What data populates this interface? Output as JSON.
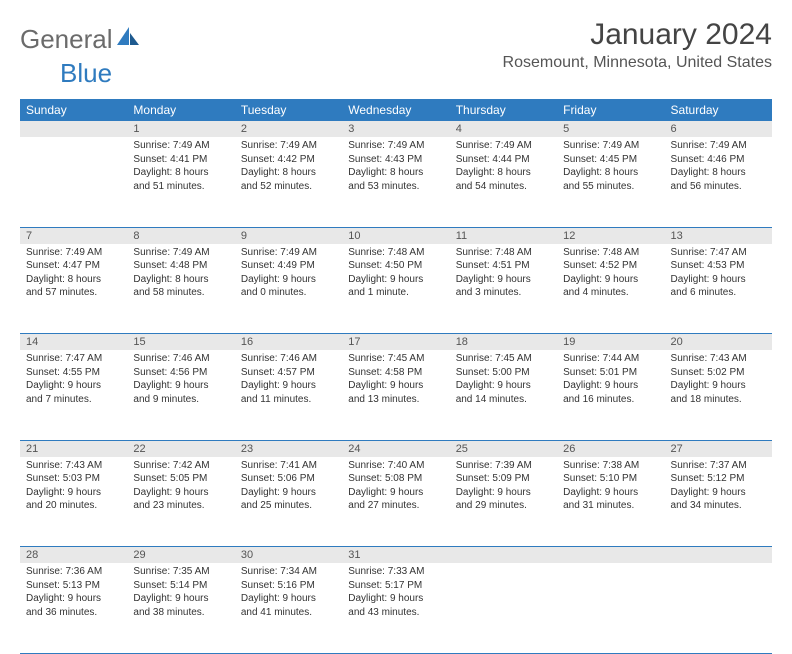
{
  "logo": {
    "text1": "General",
    "text2": "Blue"
  },
  "title": "January 2024",
  "location": "Rosemount, Minnesota, United States",
  "day_headers": [
    "Sunday",
    "Monday",
    "Tuesday",
    "Wednesday",
    "Thursday",
    "Friday",
    "Saturday"
  ],
  "colors": {
    "header_bg": "#2f7bbf",
    "header_text": "#ffffff",
    "daynum_bg": "#e8e8e8",
    "rule": "#2f7bbf",
    "page_bg": "#ffffff",
    "logo_gray": "#6b6b6b",
    "logo_blue": "#2f7bbf"
  },
  "weeks": [
    [
      {
        "n": "",
        "sunrise": "",
        "sunset": "",
        "daylight1": "",
        "daylight2": ""
      },
      {
        "n": "1",
        "sunrise": "Sunrise: 7:49 AM",
        "sunset": "Sunset: 4:41 PM",
        "daylight1": "Daylight: 8 hours",
        "daylight2": "and 51 minutes."
      },
      {
        "n": "2",
        "sunrise": "Sunrise: 7:49 AM",
        "sunset": "Sunset: 4:42 PM",
        "daylight1": "Daylight: 8 hours",
        "daylight2": "and 52 minutes."
      },
      {
        "n": "3",
        "sunrise": "Sunrise: 7:49 AM",
        "sunset": "Sunset: 4:43 PM",
        "daylight1": "Daylight: 8 hours",
        "daylight2": "and 53 minutes."
      },
      {
        "n": "4",
        "sunrise": "Sunrise: 7:49 AM",
        "sunset": "Sunset: 4:44 PM",
        "daylight1": "Daylight: 8 hours",
        "daylight2": "and 54 minutes."
      },
      {
        "n": "5",
        "sunrise": "Sunrise: 7:49 AM",
        "sunset": "Sunset: 4:45 PM",
        "daylight1": "Daylight: 8 hours",
        "daylight2": "and 55 minutes."
      },
      {
        "n": "6",
        "sunrise": "Sunrise: 7:49 AM",
        "sunset": "Sunset: 4:46 PM",
        "daylight1": "Daylight: 8 hours",
        "daylight2": "and 56 minutes."
      }
    ],
    [
      {
        "n": "7",
        "sunrise": "Sunrise: 7:49 AM",
        "sunset": "Sunset: 4:47 PM",
        "daylight1": "Daylight: 8 hours",
        "daylight2": "and 57 minutes."
      },
      {
        "n": "8",
        "sunrise": "Sunrise: 7:49 AM",
        "sunset": "Sunset: 4:48 PM",
        "daylight1": "Daylight: 8 hours",
        "daylight2": "and 58 minutes."
      },
      {
        "n": "9",
        "sunrise": "Sunrise: 7:49 AM",
        "sunset": "Sunset: 4:49 PM",
        "daylight1": "Daylight: 9 hours",
        "daylight2": "and 0 minutes."
      },
      {
        "n": "10",
        "sunrise": "Sunrise: 7:48 AM",
        "sunset": "Sunset: 4:50 PM",
        "daylight1": "Daylight: 9 hours",
        "daylight2": "and 1 minute."
      },
      {
        "n": "11",
        "sunrise": "Sunrise: 7:48 AM",
        "sunset": "Sunset: 4:51 PM",
        "daylight1": "Daylight: 9 hours",
        "daylight2": "and 3 minutes."
      },
      {
        "n": "12",
        "sunrise": "Sunrise: 7:48 AM",
        "sunset": "Sunset: 4:52 PM",
        "daylight1": "Daylight: 9 hours",
        "daylight2": "and 4 minutes."
      },
      {
        "n": "13",
        "sunrise": "Sunrise: 7:47 AM",
        "sunset": "Sunset: 4:53 PM",
        "daylight1": "Daylight: 9 hours",
        "daylight2": "and 6 minutes."
      }
    ],
    [
      {
        "n": "14",
        "sunrise": "Sunrise: 7:47 AM",
        "sunset": "Sunset: 4:55 PM",
        "daylight1": "Daylight: 9 hours",
        "daylight2": "and 7 minutes."
      },
      {
        "n": "15",
        "sunrise": "Sunrise: 7:46 AM",
        "sunset": "Sunset: 4:56 PM",
        "daylight1": "Daylight: 9 hours",
        "daylight2": "and 9 minutes."
      },
      {
        "n": "16",
        "sunrise": "Sunrise: 7:46 AM",
        "sunset": "Sunset: 4:57 PM",
        "daylight1": "Daylight: 9 hours",
        "daylight2": "and 11 minutes."
      },
      {
        "n": "17",
        "sunrise": "Sunrise: 7:45 AM",
        "sunset": "Sunset: 4:58 PM",
        "daylight1": "Daylight: 9 hours",
        "daylight2": "and 13 minutes."
      },
      {
        "n": "18",
        "sunrise": "Sunrise: 7:45 AM",
        "sunset": "Sunset: 5:00 PM",
        "daylight1": "Daylight: 9 hours",
        "daylight2": "and 14 minutes."
      },
      {
        "n": "19",
        "sunrise": "Sunrise: 7:44 AM",
        "sunset": "Sunset: 5:01 PM",
        "daylight1": "Daylight: 9 hours",
        "daylight2": "and 16 minutes."
      },
      {
        "n": "20",
        "sunrise": "Sunrise: 7:43 AM",
        "sunset": "Sunset: 5:02 PM",
        "daylight1": "Daylight: 9 hours",
        "daylight2": "and 18 minutes."
      }
    ],
    [
      {
        "n": "21",
        "sunrise": "Sunrise: 7:43 AM",
        "sunset": "Sunset: 5:03 PM",
        "daylight1": "Daylight: 9 hours",
        "daylight2": "and 20 minutes."
      },
      {
        "n": "22",
        "sunrise": "Sunrise: 7:42 AM",
        "sunset": "Sunset: 5:05 PM",
        "daylight1": "Daylight: 9 hours",
        "daylight2": "and 23 minutes."
      },
      {
        "n": "23",
        "sunrise": "Sunrise: 7:41 AM",
        "sunset": "Sunset: 5:06 PM",
        "daylight1": "Daylight: 9 hours",
        "daylight2": "and 25 minutes."
      },
      {
        "n": "24",
        "sunrise": "Sunrise: 7:40 AM",
        "sunset": "Sunset: 5:08 PM",
        "daylight1": "Daylight: 9 hours",
        "daylight2": "and 27 minutes."
      },
      {
        "n": "25",
        "sunrise": "Sunrise: 7:39 AM",
        "sunset": "Sunset: 5:09 PM",
        "daylight1": "Daylight: 9 hours",
        "daylight2": "and 29 minutes."
      },
      {
        "n": "26",
        "sunrise": "Sunrise: 7:38 AM",
        "sunset": "Sunset: 5:10 PM",
        "daylight1": "Daylight: 9 hours",
        "daylight2": "and 31 minutes."
      },
      {
        "n": "27",
        "sunrise": "Sunrise: 7:37 AM",
        "sunset": "Sunset: 5:12 PM",
        "daylight1": "Daylight: 9 hours",
        "daylight2": "and 34 minutes."
      }
    ],
    [
      {
        "n": "28",
        "sunrise": "Sunrise: 7:36 AM",
        "sunset": "Sunset: 5:13 PM",
        "daylight1": "Daylight: 9 hours",
        "daylight2": "and 36 minutes."
      },
      {
        "n": "29",
        "sunrise": "Sunrise: 7:35 AM",
        "sunset": "Sunset: 5:14 PM",
        "daylight1": "Daylight: 9 hours",
        "daylight2": "and 38 minutes."
      },
      {
        "n": "30",
        "sunrise": "Sunrise: 7:34 AM",
        "sunset": "Sunset: 5:16 PM",
        "daylight1": "Daylight: 9 hours",
        "daylight2": "and 41 minutes."
      },
      {
        "n": "31",
        "sunrise": "Sunrise: 7:33 AM",
        "sunset": "Sunset: 5:17 PM",
        "daylight1": "Daylight: 9 hours",
        "daylight2": "and 43 minutes."
      },
      {
        "n": "",
        "sunrise": "",
        "sunset": "",
        "daylight1": "",
        "daylight2": ""
      },
      {
        "n": "",
        "sunrise": "",
        "sunset": "",
        "daylight1": "",
        "daylight2": ""
      },
      {
        "n": "",
        "sunrise": "",
        "sunset": "",
        "daylight1": "",
        "daylight2": ""
      }
    ]
  ]
}
